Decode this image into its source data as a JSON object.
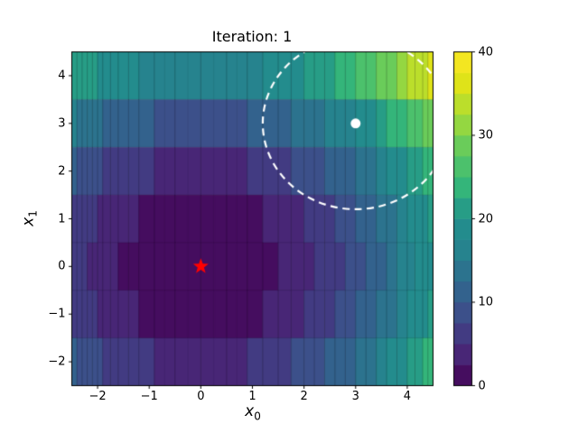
{
  "title": "Iteration: 1",
  "axes": {
    "xlabel_base": "x",
    "xlabel_sub": "0",
    "ylabel_base": "x",
    "ylabel_sub": "1",
    "xticklabels": [
      "−2",
      "−1",
      "0",
      "1",
      "2",
      "3",
      "4"
    ],
    "yticklabels": [
      "−2",
      "−1",
      "0",
      "1",
      "2",
      "3",
      "4"
    ]
  },
  "colorbar_labels": [
    "0",
    "10",
    "20",
    "30",
    "40"
  ],
  "chart_data": {
    "type": "heatmap",
    "title": "Iteration: 1",
    "xlabel": "x_0",
    "ylabel": "x_1",
    "xlim": [
      -2.5,
      4.5
    ],
    "ylim": [
      -2.5,
      4.5
    ],
    "xticks": [
      -2,
      -1,
      0,
      1,
      2,
      3,
      4
    ],
    "yticks": [
      -2,
      -1,
      0,
      1,
      2,
      3,
      4
    ],
    "grid": false,
    "colormap": "viridis",
    "colormap_stops": [
      [
        0.0,
        "#440154"
      ],
      [
        0.1,
        "#482878"
      ],
      [
        0.2,
        "#3e4a89"
      ],
      [
        0.3,
        "#31688e"
      ],
      [
        0.4,
        "#26828e"
      ],
      [
        0.5,
        "#21918c"
      ],
      [
        0.6,
        "#35b779"
      ],
      [
        0.7,
        "#5ec962"
      ],
      [
        0.8,
        "#a0da39"
      ],
      [
        0.9,
        "#dde318"
      ],
      [
        1.0,
        "#fde725"
      ]
    ],
    "vmin": 0,
    "vmax": 40,
    "level_step": 2.5,
    "colorbar_ticks": [
      0,
      10,
      20,
      30,
      40
    ],
    "mesh_edge_color": "rgba(0,0,0,0.22)",
    "surface": {
      "x_edges": [
        -2.5,
        -2.4,
        -2.3,
        -2.2,
        -2.1,
        -2.0,
        -1.9,
        -1.75,
        -1.6,
        -1.4,
        -1.2,
        -0.9,
        -0.5,
        0.0,
        0.5,
        0.9,
        1.2,
        1.5,
        1.75,
        2.0,
        2.2,
        2.4,
        2.6,
        2.8,
        3.0,
        3.2,
        3.4,
        3.6,
        3.8,
        4.0,
        4.15,
        4.3,
        4.4,
        4.5
      ],
      "y_edges": [
        -2.5,
        -1.5,
        -0.5,
        0.5,
        1.5,
        2.5,
        3.5,
        4.5
      ],
      "rows_top_to_bottom": [
        {
          "y": 4,
          "values": [
            22.0,
            21.52,
            21.06,
            20.62,
            20.2,
            19.8,
            19.33,
            18.81,
            18.25,
            17.69,
            17.1,
            16.49,
            16.06,
            16.06,
            16.49,
            17.1,
            17.82,
            18.64,
            19.52,
            20.41,
            21.29,
            22.25,
            23.29,
            24.41,
            25.61,
            26.89,
            28.25,
            29.69,
            31.21,
            32.61,
            33.85,
            34.92,
            35.8
          ]
        },
        {
          "y": 3,
          "values": [
            15.0,
            14.52,
            14.06,
            13.62,
            13.2,
            12.8,
            12.33,
            11.81,
            11.25,
            10.69,
            10.1,
            9.49,
            9.06,
            9.06,
            9.49,
            10.1,
            10.82,
            11.64,
            12.52,
            13.41,
            14.29,
            15.25,
            16.29,
            17.41,
            18.61,
            19.89,
            21.25,
            22.69,
            24.21,
            25.61,
            26.85,
            27.92,
            28.8
          ]
        },
        {
          "y": 2,
          "values": [
            10.0,
            9.52,
            9.06,
            8.62,
            8.2,
            7.8,
            7.33,
            6.81,
            6.25,
            5.69,
            5.1,
            4.49,
            4.06,
            4.06,
            4.49,
            5.1,
            5.82,
            6.64,
            7.52,
            8.41,
            9.29,
            10.25,
            11.29,
            12.41,
            13.61,
            14.89,
            16.25,
            17.69,
            19.21,
            20.61,
            21.85,
            22.92,
            23.8
          ]
        },
        {
          "y": 1,
          "values": [
            7.0,
            6.52,
            6.06,
            5.62,
            5.2,
            4.8,
            4.33,
            3.81,
            3.25,
            2.69,
            2.1,
            1.49,
            1.06,
            1.06,
            1.49,
            2.1,
            2.82,
            3.64,
            4.52,
            5.41,
            6.29,
            7.25,
            8.29,
            9.41,
            10.61,
            11.89,
            13.25,
            14.69,
            16.21,
            17.61,
            18.85,
            19.92,
            20.8
          ]
        },
        {
          "y": 0,
          "values": [
            6.0,
            5.52,
            5.06,
            4.62,
            4.2,
            3.8,
            3.33,
            2.81,
            2.25,
            1.69,
            1.1,
            0.49,
            0.06,
            0.06,
            0.49,
            1.1,
            1.82,
            2.64,
            3.52,
            4.41,
            5.29,
            6.25,
            7.29,
            8.41,
            9.61,
            10.89,
            12.25,
            13.69,
            15.21,
            16.61,
            17.85,
            18.92,
            19.8
          ]
        },
        {
          "y": -1,
          "values": [
            7.0,
            6.52,
            6.06,
            5.62,
            5.2,
            4.8,
            4.33,
            3.81,
            3.25,
            2.69,
            2.1,
            1.49,
            1.06,
            1.06,
            1.49,
            2.1,
            2.82,
            3.64,
            4.52,
            5.41,
            6.29,
            7.25,
            8.29,
            9.41,
            10.61,
            11.89,
            13.25,
            14.69,
            16.21,
            17.61,
            18.85,
            19.92,
            20.8
          ]
        },
        {
          "y": -2,
          "values": [
            10.0,
            9.52,
            9.06,
            8.62,
            8.2,
            7.8,
            7.33,
            6.81,
            6.25,
            5.69,
            5.1,
            4.49,
            4.06,
            4.06,
            4.49,
            5.1,
            5.82,
            6.64,
            7.52,
            8.41,
            9.29,
            10.25,
            11.29,
            12.41,
            13.61,
            14.89,
            16.25,
            17.69,
            19.21,
            20.61,
            21.85,
            22.92,
            23.8
          ]
        }
      ]
    },
    "markers": {
      "star": {
        "x": 0,
        "y": 0,
        "color": "#ff0000",
        "shape": "star"
      },
      "dot": {
        "x": 3,
        "y": 3,
        "color": "#ffffff",
        "shape": "circle"
      },
      "dashed_circle": {
        "cx": 3,
        "cy": 3,
        "radius": 1.8,
        "color": "#ffffff",
        "linestyle": "dashed"
      }
    }
  }
}
